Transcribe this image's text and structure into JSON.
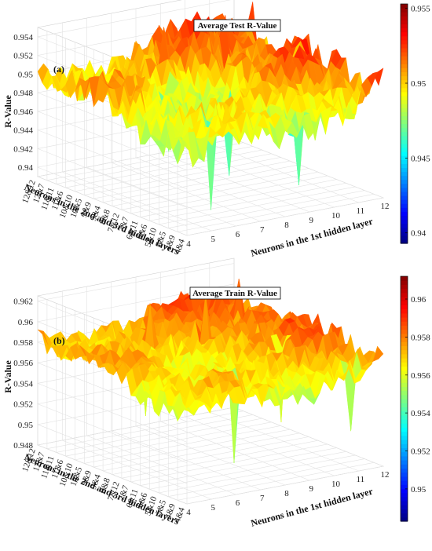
{
  "chart_data": [
    {
      "type": "surface",
      "title": "Average Test R-Value",
      "panel_label": "(a)",
      "xlabel": "Neurons in the 1st hidden layer",
      "ylabel": "Neurons in the 2nd and 3rd hidden layers",
      "zlabel": "R-Value",
      "x_ticks": [
        "4",
        "5",
        "6",
        "7",
        "8",
        "9",
        "10",
        "11",
        "12"
      ],
      "y_ticks": [
        "12&12",
        "12&7",
        "11&11",
        "11&6",
        "10&10",
        "10&5",
        "9&9",
        "9&4",
        "8&8",
        "7&12",
        "7&7",
        "6&11",
        "6&6",
        "5&10",
        "5&5",
        "4&9",
        "4&4"
      ],
      "z_ticks": [
        "0.94",
        "0.942",
        "0.944",
        "0.946",
        "0.948",
        "0.95",
        "0.952",
        "0.954"
      ],
      "zlim": [
        0.939,
        0.955
      ],
      "colorbar_ticks": [
        "0.94",
        "0.945",
        "0.95",
        "0.955"
      ],
      "colormap": "jet",
      "grid": true,
      "base": 0.9505,
      "amplitude": 0.0025,
      "dips": [
        [
          13,
          2,
          0.9395
        ],
        [
          10,
          4,
          0.941
        ],
        [
          15,
          5,
          0.9415
        ],
        [
          9,
          7,
          0.9425
        ],
        [
          6,
          3,
          0.9425
        ]
      ],
      "peaks": [
        [
          4,
          6,
          0.9548
        ],
        [
          2,
          8,
          0.9545
        ],
        [
          3,
          4,
          0.9542
        ],
        [
          1,
          6,
          0.954
        ]
      ]
    },
    {
      "type": "surface",
      "title": "Average Train R-Value",
      "panel_label": "(b)",
      "xlabel": "Neurons in the 1st hidden layer",
      "ylabel": "Neurons in the 2nd and 3rd hidden layers",
      "zlabel": "R-Value",
      "x_ticks": [
        "4",
        "5",
        "6",
        "7",
        "8",
        "9",
        "10",
        "11",
        "12"
      ],
      "y_ticks": [
        "12&12",
        "12&7",
        "11&11",
        "11&6",
        "10&10",
        "10&5",
        "9&9",
        "9&4",
        "8&8",
        "7&12",
        "7&7",
        "6&11",
        "6&6",
        "5&10",
        "5&5",
        "4&9",
        "4&4"
      ],
      "z_ticks": [
        "0.948",
        "0.95",
        "0.952",
        "0.954",
        "0.956",
        "0.958",
        "0.96",
        "0.962"
      ],
      "zlim": [
        0.948,
        0.9625
      ],
      "colorbar_ticks": [
        "0.95",
        "0.952",
        "0.954",
        "0.956",
        "0.958",
        "0.96"
      ],
      "colormap": "jet",
      "grid": true,
      "base": 0.9585,
      "amplitude": 0.0018,
      "dips": [
        [
          13,
          3,
          0.9495
        ],
        [
          10,
          6,
          0.951
        ],
        [
          15,
          7,
          0.9515
        ],
        [
          6,
          2,
          0.952
        ]
      ],
      "peaks": [
        [
          5,
          5,
          0.9622
        ],
        [
          3,
          7,
          0.962
        ],
        [
          4,
          3,
          0.9618
        ]
      ]
    }
  ]
}
